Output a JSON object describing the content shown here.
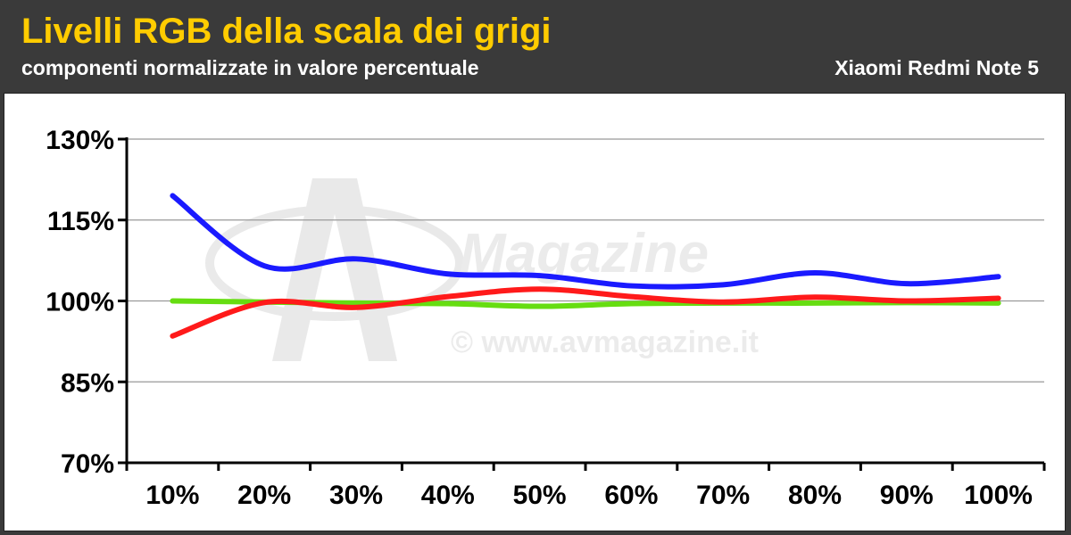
{
  "header": {
    "title": "Livelli RGB della scala dei grigi",
    "subtitle": "componenti normalizzate in valore percentuale",
    "device": "Xiaomi Redmi Note 5"
  },
  "watermark": {
    "brand": "Magazine",
    "copyright": "© www.avmagazine.it"
  },
  "colors": {
    "background_header": "#3a3a3a",
    "title": "#ffcc00",
    "blue": "#1a1aff",
    "red": "#ff1a1a",
    "green": "#66dd11",
    "grid": "#999999"
  },
  "chart_data": {
    "type": "line",
    "title": "Livelli RGB della scala dei grigi",
    "subtitle": "componenti normalizzate in valore percentuale",
    "categories": [
      "10%",
      "20%",
      "30%",
      "40%",
      "50%",
      "60%",
      "70%",
      "80%",
      "90%",
      "100%"
    ],
    "y_ticks": [
      "130%",
      "115%",
      "100%",
      "85%",
      "70%"
    ],
    "ylim": [
      70,
      130
    ],
    "grid": true,
    "legend": "none",
    "series": [
      {
        "color": "#66dd11",
        "values": [
          100.0,
          99.8,
          99.6,
          99.5,
          99.0,
          99.5,
          99.6,
          99.6,
          99.7,
          99.6
        ]
      },
      {
        "color": "#ff1a1a",
        "values": [
          93.5,
          99.7,
          98.8,
          100.8,
          102.2,
          100.8,
          99.8,
          100.7,
          100.0,
          100.5
        ]
      },
      {
        "color": "#1a1aff",
        "values": [
          119.5,
          106.5,
          107.8,
          105.0,
          104.7,
          102.8,
          103.0,
          105.2,
          103.2,
          104.5
        ]
      }
    ]
  }
}
